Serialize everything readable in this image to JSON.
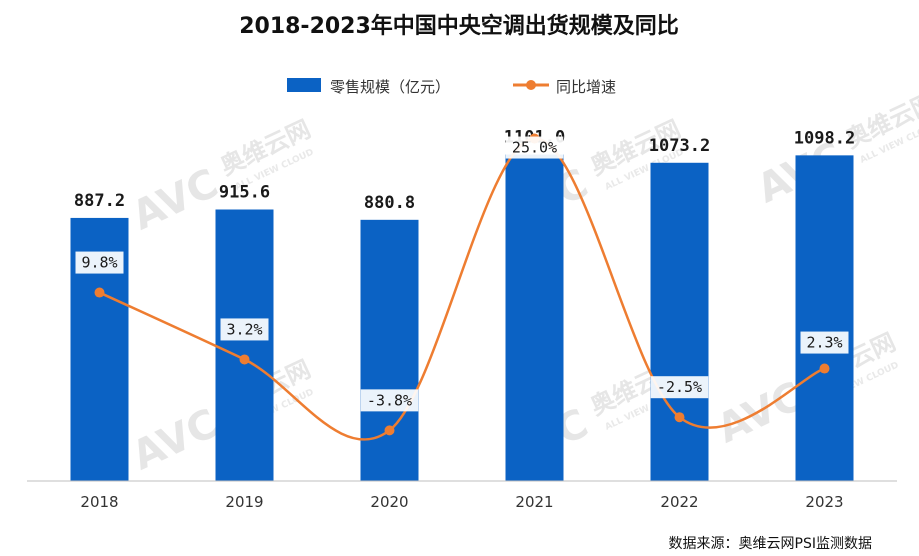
{
  "chart_data": {
    "type": "bar+line",
    "title": "2018-2023年中国中央空调出货规模及同比",
    "categories": [
      "2018",
      "2019",
      "2020",
      "2021",
      "2022",
      "2023"
    ],
    "series": [
      {
        "name": "零售规模（亿元）",
        "type": "bar",
        "axis": "left",
        "values": [
          887.2,
          915.6,
          880.8,
          1101.0,
          1073.2,
          1098.2
        ],
        "labels": [
          "887.2",
          "915.6",
          "880.8",
          "1101.0",
          "1073.2",
          "1098.2"
        ]
      },
      {
        "name": "同比增速",
        "type": "line",
        "axis": "right",
        "values": [
          9.8,
          3.2,
          -3.8,
          25.0,
          -2.5,
          2.3
        ],
        "labels": [
          "9.8%",
          "3.2%",
          "-3.8%",
          "25.0%",
          "-2.5%",
          "2.3%"
        ]
      }
    ],
    "ylim_left": [
      0,
      1150
    ],
    "ylim_right": [
      -8.5,
      29
    ],
    "legend_position": "top-center",
    "grid": false,
    "colors": {
      "bar": "#0b62c4",
      "line": "#ee7d31",
      "axis": "#bfbfbf"
    }
  },
  "source": "数据来源：奥维云网PSI监测数据",
  "watermark": {
    "logo": "AVC",
    "cn": "奥维云网",
    "en": "ALL VIEW CLOUD"
  }
}
